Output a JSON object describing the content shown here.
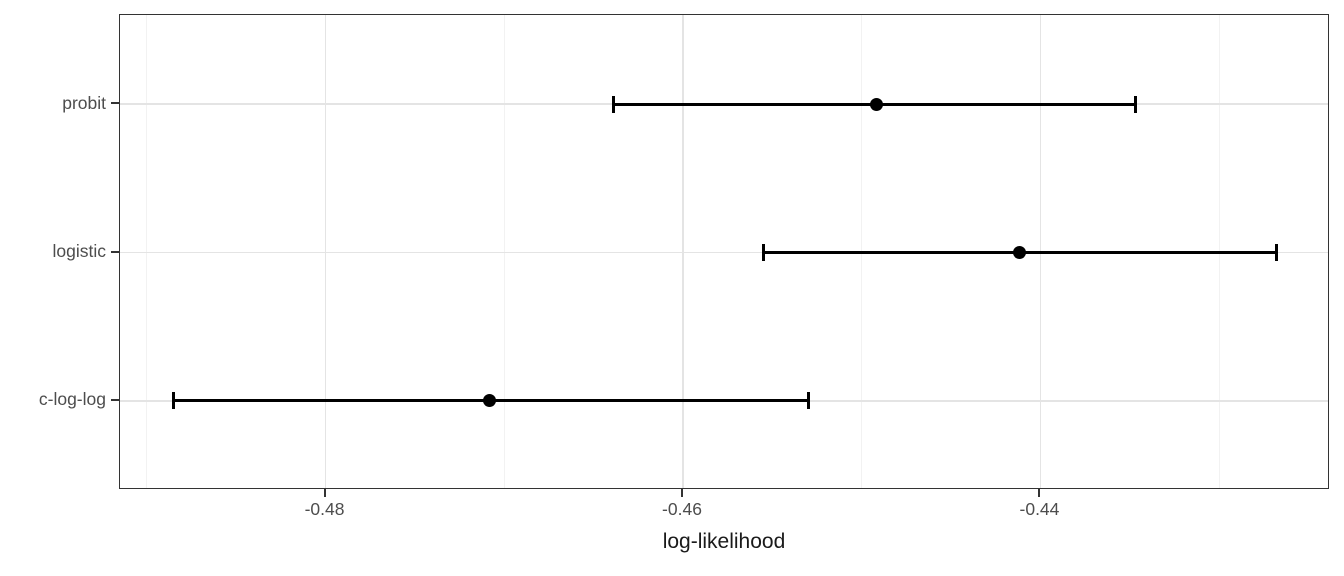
{
  "chart_data": {
    "type": "scatter",
    "subtype": "horizontal-dot-errorbar",
    "title": "",
    "xlabel": "log-likelihood",
    "ylabel": "",
    "categories": [
      "probit",
      "logistic",
      "c-log-log"
    ],
    "series": [
      {
        "name": "probit",
        "estimate": -0.4492,
        "lower": -0.4639,
        "upper": -0.4347
      },
      {
        "name": "logistic",
        "estimate": -0.4412,
        "lower": -0.4555,
        "upper": -0.4268
      },
      {
        "name": "c-log-log",
        "estimate": -0.4708,
        "lower": -0.4885,
        "upper": -0.453
      }
    ],
    "x_major_ticks": [
      -0.48,
      -0.46,
      -0.44
    ],
    "x_major_tick_labels": [
      "-0.48",
      "-0.46",
      "-0.44"
    ],
    "x_minor_ticks": [
      -0.49,
      -0.47,
      -0.45,
      -0.43
    ],
    "xlim": [
      -0.4915,
      -0.4238
    ],
    "grid": true,
    "legend": false
  },
  "colors": {
    "data": "#000000",
    "panel_border": "#333333",
    "grid_major": "#e4e4e4",
    "grid_minor": "#f2f2f2",
    "axis_text": "#4d4d4d",
    "axis_title": "#1a1a1a",
    "tick_mark": "#333333",
    "background": "#ffffff"
  }
}
